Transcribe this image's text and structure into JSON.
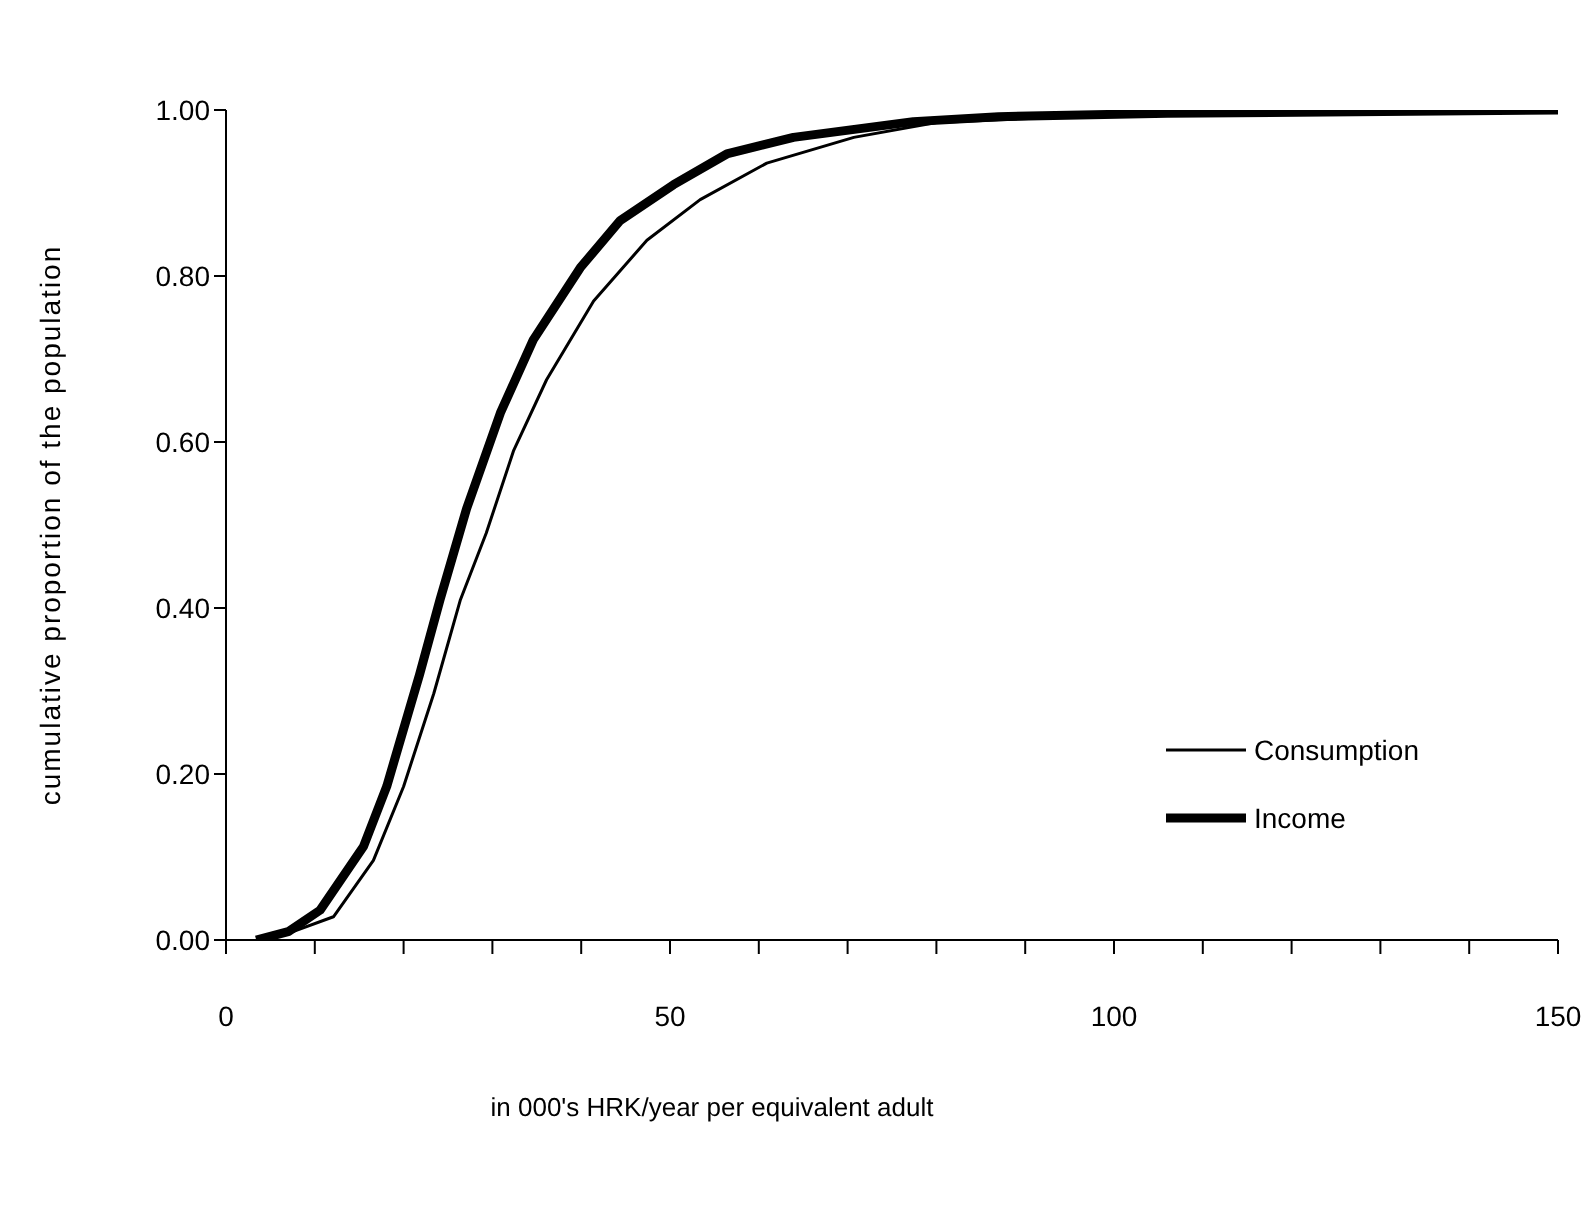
{
  "chart_data": {
    "type": "line",
    "xlabel": "in 000's HRK/year per equivalent adult",
    "ylabel": "cumulative proportion of the population",
    "xlim": [
      0,
      150
    ],
    "xticks": [
      0,
      {
        "value": 10,
        "label": null
      },
      {
        "value": 20,
        "label": null
      },
      {
        "value": 30,
        "label": null
      },
      {
        "value": 40,
        "label": null
      },
      50,
      {
        "value": 60,
        "label": null
      },
      {
        "value": 70,
        "label": null
      },
      {
        "value": 80,
        "label": null
      },
      {
        "value": 90,
        "label": null
      },
      100,
      {
        "value": 110,
        "label": null
      },
      {
        "value": 120,
        "label": null
      },
      {
        "value": 130,
        "label": null
      },
      {
        "value": 140,
        "label": null
      },
      150
    ],
    "ylim": [
      0,
      1
    ],
    "yticks": [
      {
        "value": 0,
        "label": "0.00"
      },
      {
        "value": 0.2,
        "label": "0.20"
      },
      {
        "value": 0.4,
        "label": "0.40"
      },
      {
        "value": 0.6,
        "label": "0.60"
      },
      {
        "value": 0.8,
        "label": "0.80"
      },
      {
        "value": 1,
        "label": "1.00"
      }
    ],
    "grid": false,
    "legend": "bottom right",
    "marker": "none",
    "line_style": "solid",
    "series": [
      {
        "name": "Consumption",
        "color": "#000000",
        "x": [
          3.5,
          7,
          12.1,
          16.6,
          20,
          23.4,
          26.4,
          29.3,
          32.4,
          36.1,
          41.4,
          47.4,
          53.4,
          60.9,
          70.7,
          80,
          100,
          150
        ],
        "values": [
          0,
          0.008,
          0.028,
          0.096,
          0.185,
          0.297,
          0.41,
          0.49,
          0.59,
          0.675,
          0.77,
          0.843,
          0.892,
          0.936,
          0.967,
          0.985,
          0.994,
          1
        ]
      },
      {
        "name": "Income",
        "color": "#000000",
        "x": [
          3.4,
          7,
          10.6,
          15.5,
          18.1,
          21.8,
          24.1,
          27.1,
          30.9,
          34.6,
          39.9,
          44.4,
          50.4,
          56.4,
          63.9,
          77.4,
          87,
          106,
          150
        ],
        "values": [
          0,
          0.01,
          0.036,
          0.113,
          0.185,
          0.32,
          0.41,
          0.52,
          0.635,
          0.723,
          0.81,
          0.867,
          0.91,
          0.947,
          0.967,
          0.986,
          0.992,
          0.996,
          1
        ]
      }
    ]
  }
}
